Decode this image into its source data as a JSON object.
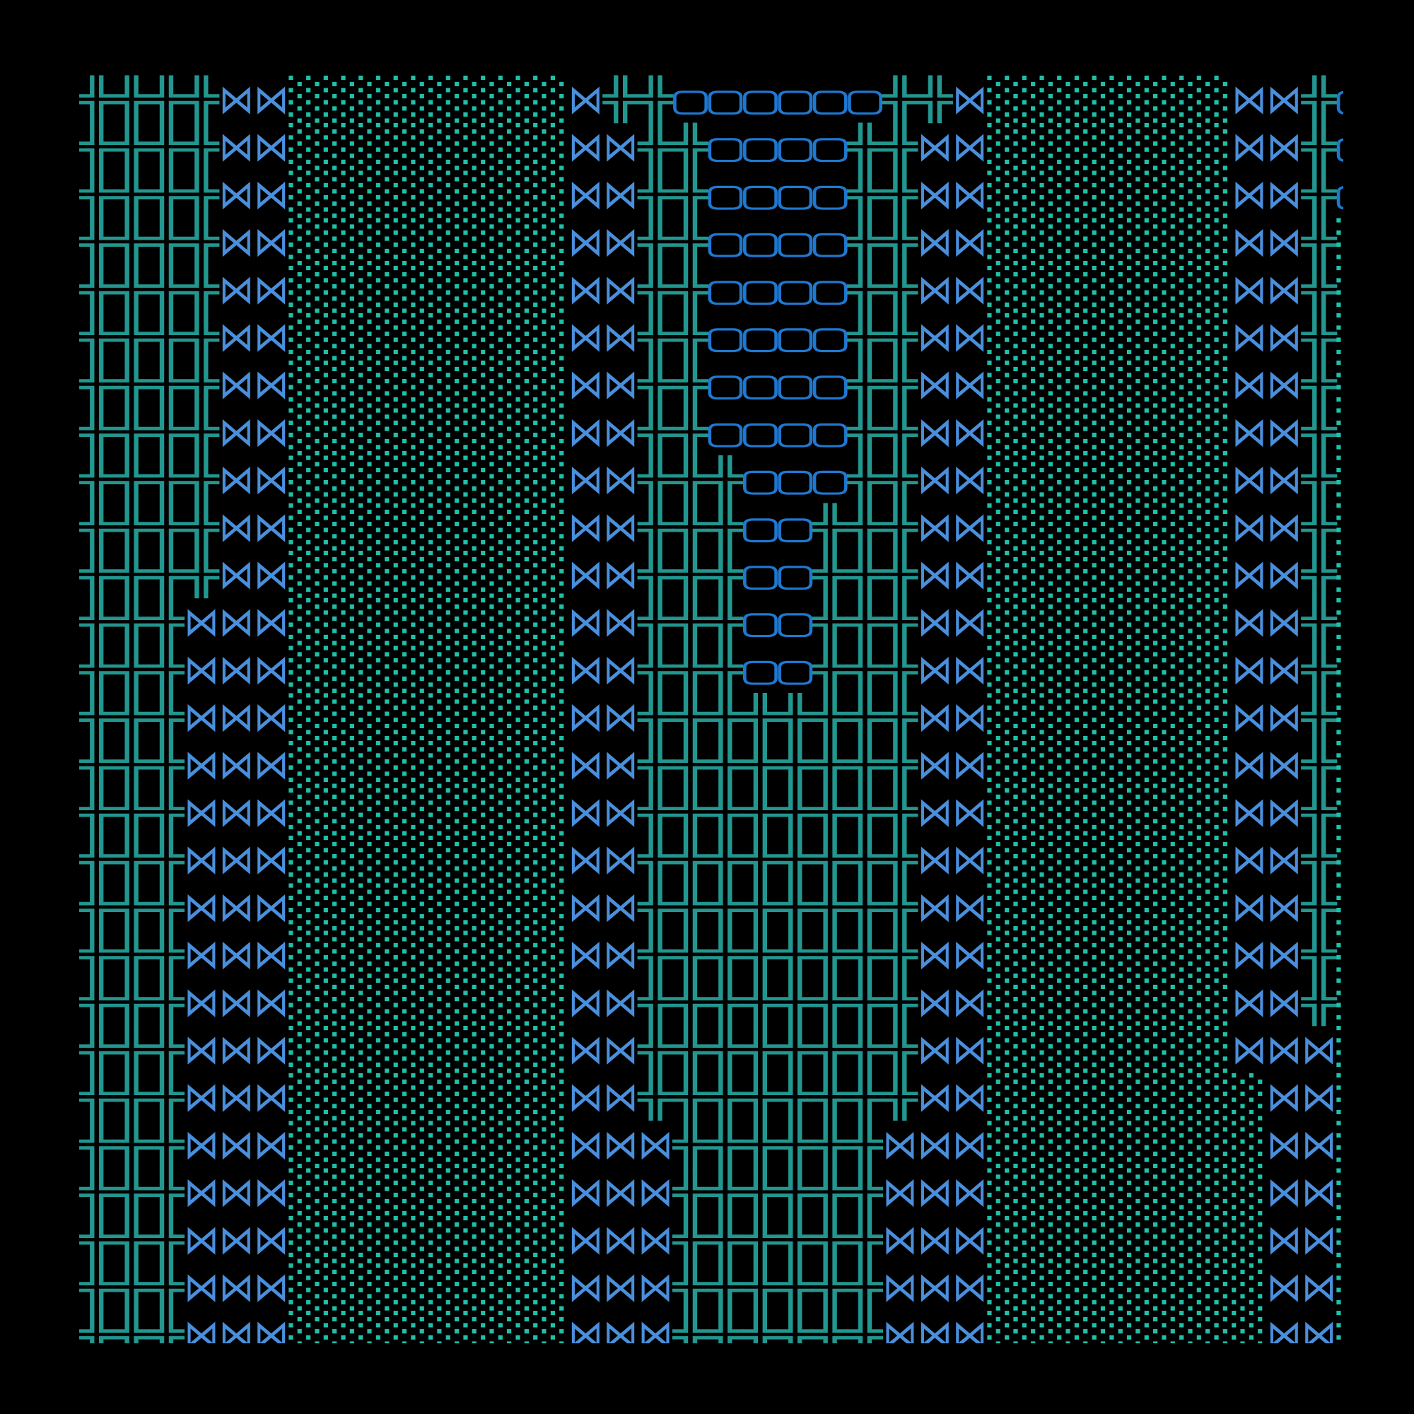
{
  "glyphs": {
    "P": {
      "char": "╬",
      "icon": "double-cross-icon",
      "color": "#22968f"
    },
    "B": {
      "char": "⋈",
      "icon": "bowtie-icon",
      "color": "#4a8fdc"
    },
    "S": {
      "char": "░",
      "icon": "light-shade-icon",
      "color": "#1fc0a8"
    },
    "D": {
      "char": "▢",
      "icon": "square-box-icon",
      "color": "#1f78d0"
    }
  },
  "background": "#000000",
  "rows": [
    "PPPPBBSSSSSSSSBPPDDDDDDPPBSSSSSSSBBPD",
    "PPPPBBSSSSSSSSBBPPDDDDPPBBSSSSSSSBBPD",
    "PPPPBBSSSSSSSSBBPPDDDDPPBBSSSSSSSBBPD",
    "PPPPBBSSSSSSSSBBPPDDDDPPBBSSSSSSSBBPS",
    "PPPPBBSSSSSSSSBBPPDDDDPPBBSSSSSSSBBPS",
    "PPPPBBSSSSSSSSBBPPDDDDPPBBSSSSSSSBBPS",
    "PPPPBBSSSSSSSSBBPPDDDDPPBBSSSSSSSBBPS",
    "PPPPBBSSSSSSSSBBPPDDDDPPBBSSSSSSSBBPS",
    "PPPPBBSSSSSSSSBBPPPDDDPPBBSSSSSSSBBPS",
    "PPPPBBSSSSSSSSBBPPPDDPPPBBSSSSSSSBBPS",
    "PPPPBBSSSSSSSSBBPPPDDPPPBBSSSSSSSBBPS",
    "PPPBBBSSSSSSSSBBPPPDDPPPBBSSSSSSSBBPS",
    "PPPBBBSSSSSSSSBBPPPDDPPPBBSSSSSSSBBPS",
    "PPPBBBSSSSSSSSBBPPPPPPPPBBSSSSSSSBBPS",
    "PPPBBBSSSSSSSSBBPPPPPPPPBBSSSSSSSBBPS",
    "PPPBBBSSSSSSSSBBPPPPPPPPBBSSSSSSSBBPS",
    "PPPBBBSSSSSSSSBBPPPPPPPPBBSSSSSSSBBPS",
    "PPPBBBSSSSSSSSBBPPPPPPPPBBSSSSSSSBBPS",
    "PPPBBBSSSSSSSSBBPPPPPPPPBBSSSSSSSBBPS",
    "PPPBBBSSSSSSSSBBPPPPPPPPBBSSSSSSSBBPS",
    "PPPBBBSSSSSSSSBBPPPPPPPPBBSSSSSSSBBBS",
    "PPPBBBSSSSSSSSBBPPPPPPPPBBSSSSSSSSBBS",
    "PPPBBBSSSSSSSSBBBPPPPPPBBBSSSSSSSSBBS",
    "PPPBBBSSSSSSSSBBBPPPPPPBBBSSSSSSSSBBS",
    "PPPBBBSSSSSSSSBBBPPPPPPBBBSSSSSSSSBBS",
    "PPPBBBSSSSSSSSBBBPPPPPPBBBSSSSSSSSBBS",
    "PPPBBBSSSSSSSSBBBPPPPPPBBBSSSSSSSSBBS"
  ]
}
